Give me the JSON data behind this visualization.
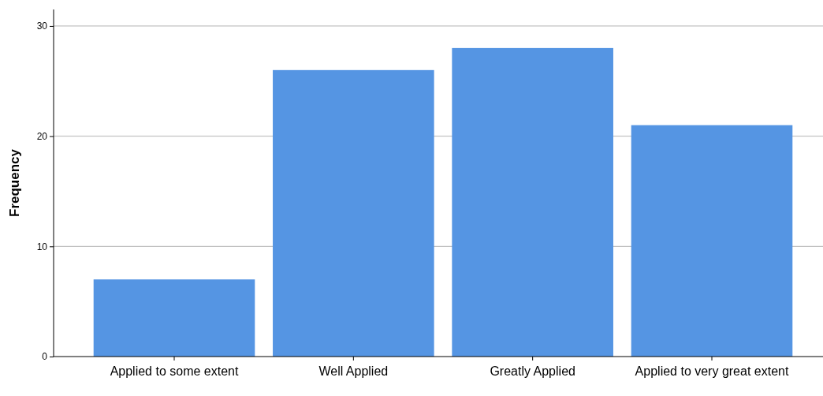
{
  "chart_data": {
    "type": "bar",
    "ylabel": "Frequency",
    "categories": [
      "Applied to some extent",
      "Well Applied",
      "Greatly Applied",
      "Applied to very great extent"
    ],
    "values": [
      7,
      26,
      28,
      21
    ],
    "color": "#5595e3",
    "ylim": [
      0,
      31.5
    ],
    "yticks": [
      0,
      10,
      20,
      30
    ],
    "grid": "y"
  }
}
